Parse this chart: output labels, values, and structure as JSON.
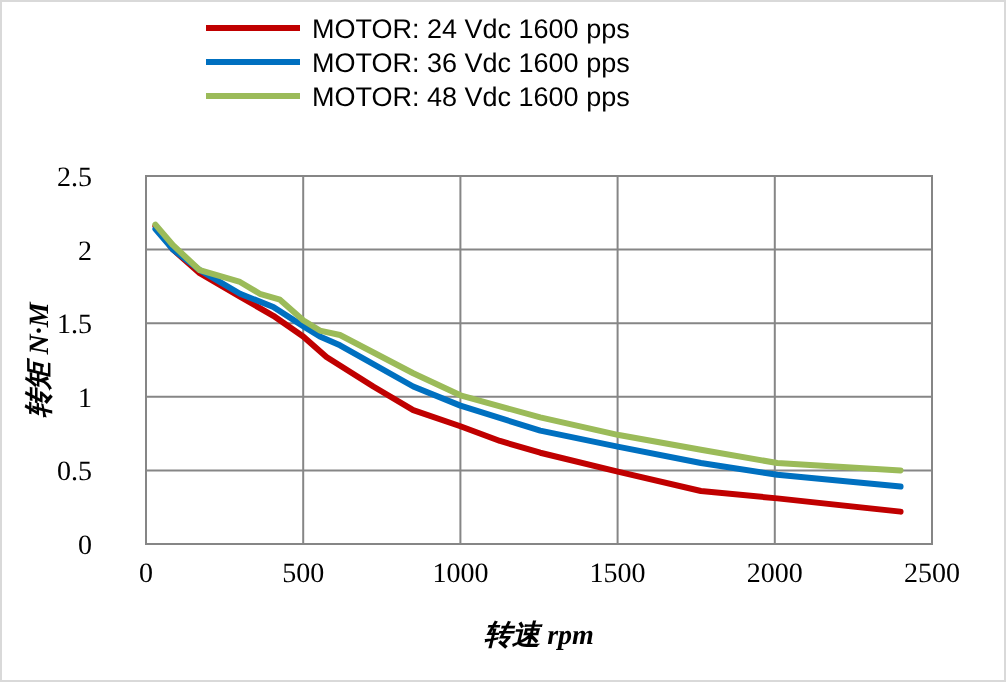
{
  "chart_data": {
    "type": "line",
    "xlabel": "转速 rpm",
    "ylabel": "转矩 N·M",
    "xlim": [
      0,
      2500
    ],
    "xticks": [
      0,
      500,
      1000,
      1500,
      2000,
      2500
    ],
    "ylim": [
      0,
      2.5
    ],
    "yticks": [
      0,
      0.5,
      1,
      1.5,
      2,
      2.5
    ],
    "grid": true,
    "legend": "top",
    "marker": "none",
    "line_style": "solid",
    "series": [
      {
        "name": "MOTOR: 24 Vdc  1600 pps",
        "color": "#c00000",
        "x": [
          30,
          86,
          171,
          299,
          405,
          500,
          574,
          723,
          850,
          1000,
          1126,
          1254,
          1504,
          1765,
          2008,
          2400
        ],
        "values": [
          2.16,
          2.0,
          1.84,
          1.68,
          1.55,
          1.41,
          1.27,
          1.07,
          0.91,
          0.8,
          0.7,
          0.62,
          0.49,
          0.36,
          0.31,
          0.22
        ]
      },
      {
        "name": "MOTOR: 36 Vdc  1600 pps",
        "color": "#0070c0",
        "x": [
          30,
          86,
          171,
          299,
          405,
          500,
          553,
          617,
          850,
          1000,
          1254,
          1504,
          1765,
          2008,
          2400
        ],
        "values": [
          2.14,
          2.0,
          1.86,
          1.7,
          1.61,
          1.48,
          1.41,
          1.35,
          1.07,
          0.94,
          0.77,
          0.66,
          0.55,
          0.47,
          0.39
        ]
      },
      {
        "name": "MOTOR: 48 Vdc  1600 pps",
        "color": "#9bbb59",
        "x": [
          30,
          86,
          171,
          299,
          362,
          426,
          500,
          553,
          617,
          850,
          1000,
          1254,
          1504,
          1765,
          2008,
          2400
        ],
        "values": [
          2.17,
          2.03,
          1.86,
          1.78,
          1.7,
          1.66,
          1.52,
          1.45,
          1.42,
          1.16,
          1.01,
          0.86,
          0.74,
          0.64,
          0.55,
          0.5
        ]
      }
    ]
  }
}
